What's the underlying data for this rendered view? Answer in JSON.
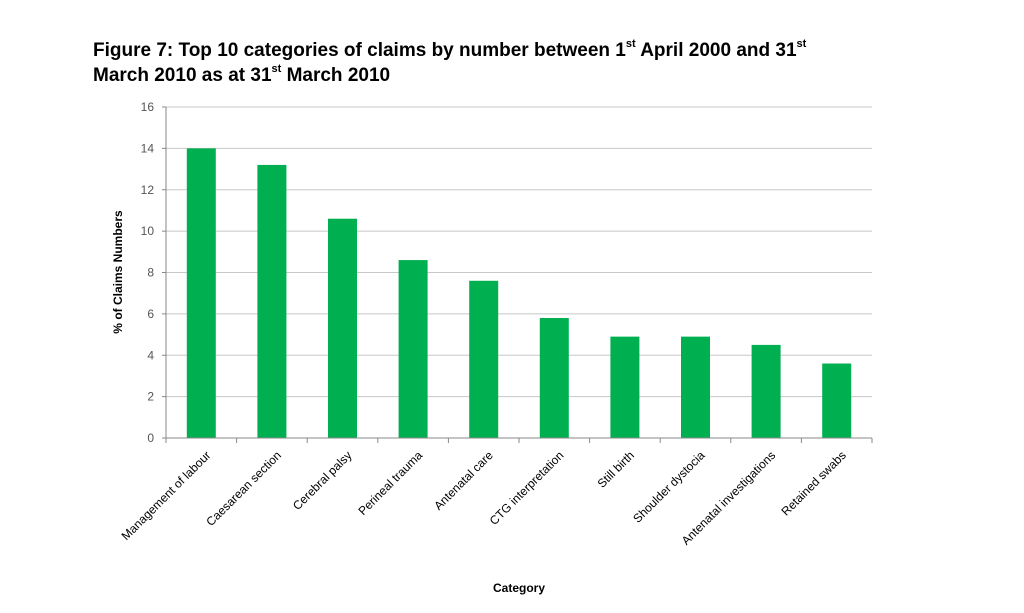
{
  "title": {
    "line1_pre": "Figure 7: Top 10 categories of claims by number between 1",
    "line1_sup1": "st",
    "line1_mid": " April 2000 and 31",
    "line1_sup2": "st",
    "line2_pre": "March 2010 as at 31",
    "line2_sup": "st",
    "line2_post": " March 2010"
  },
  "chart_data": {
    "type": "bar",
    "categories": [
      "Management of labour",
      "Caesarean section",
      "Cerebral palsy",
      "Perineal trauma",
      "Antenatal care",
      "CTG interpretation",
      "Still birth",
      "Shoulder dystocia",
      "Antenatal investigations",
      "Retained swabs"
    ],
    "values": [
      14.0,
      13.2,
      10.6,
      8.6,
      7.6,
      5.8,
      4.9,
      4.9,
      4.5,
      3.6
    ],
    "xlabel": "Category",
    "ylabel": "% of Claims Numbers",
    "ylim": [
      0,
      16
    ],
    "yticks": [
      0,
      2,
      4,
      6,
      8,
      10,
      12,
      14,
      16
    ],
    "grid": true,
    "bar_color": "#00B050",
    "grid_color": "#c8c8c8"
  }
}
